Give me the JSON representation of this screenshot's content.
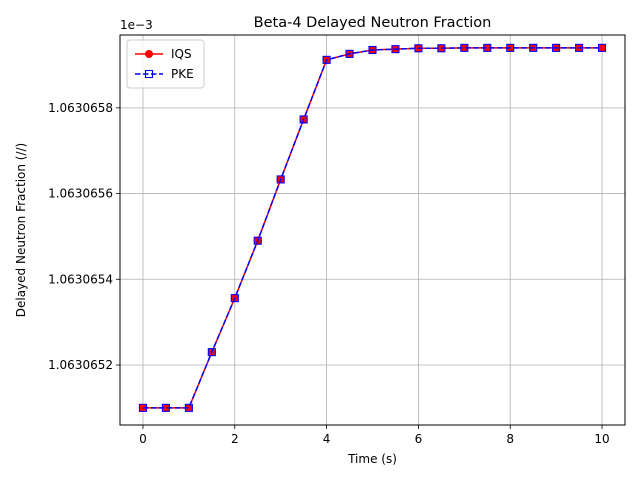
{
  "chart_data": {
    "type": "line",
    "title": "Beta-4 Delayed Neutron Fraction",
    "xlabel": "Time (s)",
    "ylabel": "Delayed Neutron Fraction (//)",
    "offset_text": "1e−3",
    "xlim": [
      -0.5,
      10.5
    ],
    "ylim": [
      1.06306506,
      1.06306597
    ],
    "x_ticks": [
      0,
      2,
      4,
      6,
      8,
      10
    ],
    "x_tick_labels": [
      "0",
      "2",
      "4",
      "6",
      "8",
      "10"
    ],
    "y_ticks": [
      1.0630652,
      1.0630654,
      1.0630656,
      1.0630658
    ],
    "y_tick_labels": [
      "1.0630652",
      "1.0630654",
      "1.0630656",
      "1.0630658"
    ],
    "grid": true,
    "legend_position": "top-left",
    "x": [
      0,
      0.5,
      1,
      1.5,
      2,
      2.5,
      3,
      3.5,
      4,
      4.5,
      5,
      5.5,
      6,
      6.5,
      7,
      7.5,
      8,
      8.5,
      9,
      9.5,
      10
    ],
    "series": [
      {
        "name": "IQS",
        "color": "#ff0000",
        "line_style": "solid",
        "marker": "filled-circle",
        "values": [
          1.0630651,
          1.0630651,
          1.0630651,
          1.06306523,
          1.063065356,
          1.06306549,
          1.063065633,
          1.063065773,
          1.063065912,
          1.063065926,
          1.063065935,
          1.063065937,
          1.063065939,
          1.063065939,
          1.06306594,
          1.06306594,
          1.06306594,
          1.06306594,
          1.06306594,
          1.06306594,
          1.06306594
        ]
      },
      {
        "name": "PKE",
        "color": "#0000ff",
        "line_style": "dashed",
        "marker": "open-square",
        "values": [
          1.0630651,
          1.0630651,
          1.0630651,
          1.06306523,
          1.063065356,
          1.06306549,
          1.063065633,
          1.063065773,
          1.063065912,
          1.063065926,
          1.063065935,
          1.063065937,
          1.063065939,
          1.063065939,
          1.06306594,
          1.06306594,
          1.06306594,
          1.06306594,
          1.06306594,
          1.06306594,
          1.06306594
        ]
      }
    ]
  }
}
